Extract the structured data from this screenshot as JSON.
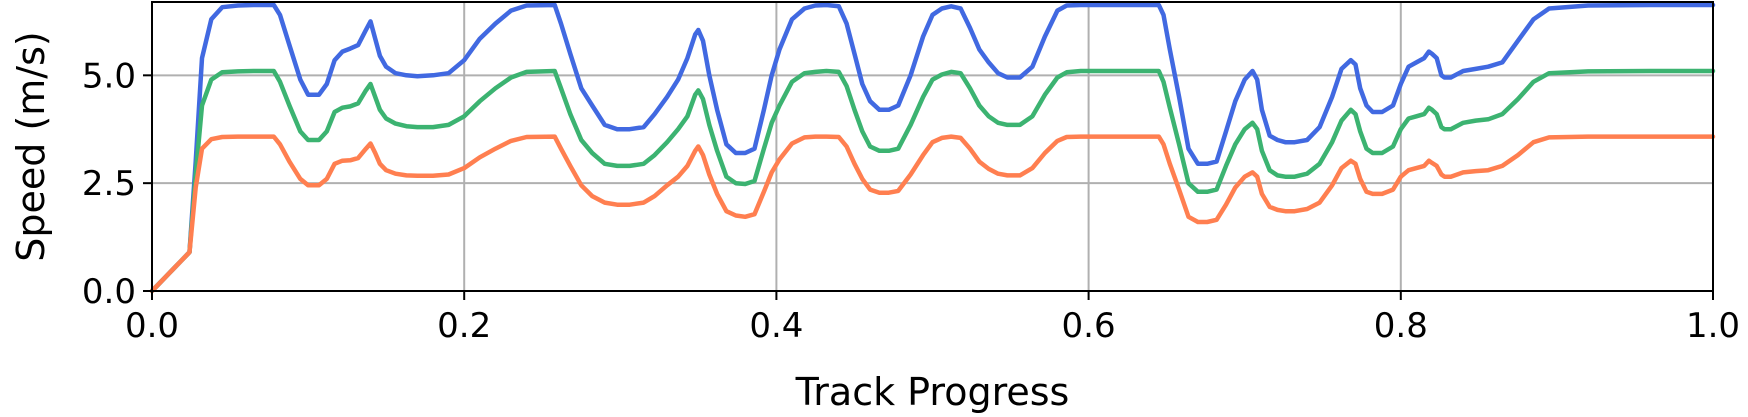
{
  "chart_data": {
    "type": "line",
    "title": "",
    "xlabel": "Track Progress",
    "ylabel": "Speed (m/s)",
    "xlim": [
      0.0,
      1.0
    ],
    "ylim": [
      0.0,
      6.7
    ],
    "xticks": [
      0.0,
      0.2,
      0.4,
      0.6,
      0.8,
      1.0
    ],
    "xtick_labels": [
      "0.0",
      "0.2",
      "0.4",
      "0.6",
      "0.8",
      "1.0"
    ],
    "yticks": [
      0.0,
      2.5,
      5.0
    ],
    "ytick_labels": [
      "0.0",
      "2.5",
      "5.0"
    ],
    "grid": true,
    "legend": "none",
    "series": [
      {
        "color": "#4169e1",
        "x": [
          0.0,
          0.024,
          0.028,
          0.032,
          0.038,
          0.045,
          0.055,
          0.065,
          0.078,
          0.082,
          0.088,
          0.095,
          0.1,
          0.107,
          0.112,
          0.117,
          0.122,
          0.127,
          0.132,
          0.137,
          0.14,
          0.143,
          0.146,
          0.15,
          0.156,
          0.163,
          0.17,
          0.18,
          0.19,
          0.2,
          0.21,
          0.22,
          0.23,
          0.24,
          0.258,
          0.262,
          0.268,
          0.275,
          0.282,
          0.29,
          0.298,
          0.306,
          0.315,
          0.322,
          0.33,
          0.337,
          0.343,
          0.348,
          0.35,
          0.353,
          0.357,
          0.362,
          0.368,
          0.374,
          0.38,
          0.386,
          0.392,
          0.397,
          0.402,
          0.41,
          0.418,
          0.425,
          0.432,
          0.44,
          0.445,
          0.45,
          0.455,
          0.46,
          0.466,
          0.472,
          0.478,
          0.486,
          0.494,
          0.5,
          0.506,
          0.512,
          0.518,
          0.524,
          0.53,
          0.536,
          0.542,
          0.548,
          0.556,
          0.564,
          0.572,
          0.58,
          0.586,
          0.595,
          0.62,
          0.645,
          0.648,
          0.652,
          0.658,
          0.664,
          0.67,
          0.676,
          0.682,
          0.688,
          0.694,
          0.7,
          0.705,
          0.708,
          0.711,
          0.716,
          0.721,
          0.726,
          0.732,
          0.74,
          0.748,
          0.756,
          0.762,
          0.768,
          0.771,
          0.774,
          0.778,
          0.782,
          0.788,
          0.795,
          0.8,
          0.805,
          0.81,
          0.815,
          0.818,
          0.82,
          0.823,
          0.826,
          0.828,
          0.832,
          0.84,
          0.848,
          0.856,
          0.865,
          0.875,
          0.885,
          0.895,
          0.92,
          0.96,
          1.0
        ],
        "y": [
          0.0,
          0.9,
          3.0,
          5.4,
          6.3,
          6.58,
          6.62,
          6.63,
          6.63,
          6.4,
          5.7,
          4.9,
          4.55,
          4.55,
          4.8,
          5.35,
          5.55,
          5.62,
          5.7,
          6.05,
          6.25,
          5.85,
          5.45,
          5.2,
          5.05,
          5.0,
          4.98,
          5.0,
          5.05,
          5.35,
          5.85,
          6.2,
          6.5,
          6.62,
          6.63,
          6.2,
          5.5,
          4.7,
          4.3,
          3.85,
          3.75,
          3.75,
          3.8,
          4.1,
          4.5,
          4.9,
          5.4,
          5.95,
          6.05,
          5.8,
          5.0,
          4.2,
          3.4,
          3.2,
          3.2,
          3.3,
          4.2,
          5.0,
          5.6,
          6.3,
          6.55,
          6.62,
          6.63,
          6.6,
          6.2,
          5.5,
          4.8,
          4.4,
          4.2,
          4.2,
          4.3,
          5.0,
          5.9,
          6.4,
          6.55,
          6.6,
          6.55,
          6.1,
          5.6,
          5.3,
          5.05,
          4.95,
          4.95,
          5.2,
          5.9,
          6.5,
          6.62,
          6.63,
          6.63,
          6.63,
          6.4,
          5.6,
          4.5,
          3.3,
          2.95,
          2.95,
          3.0,
          3.7,
          4.4,
          4.9,
          5.1,
          4.9,
          4.2,
          3.6,
          3.5,
          3.45,
          3.45,
          3.5,
          3.8,
          4.5,
          5.15,
          5.35,
          5.25,
          4.7,
          4.3,
          4.15,
          4.15,
          4.3,
          4.8,
          5.2,
          5.3,
          5.4,
          5.55,
          5.5,
          5.4,
          5.0,
          4.95,
          4.95,
          5.1,
          5.15,
          5.2,
          5.3,
          5.8,
          6.3,
          6.55,
          6.62,
          6.63,
          6.63
        ]
      },
      {
        "color": "#3cb371",
        "x": [
          0.0,
          0.024,
          0.028,
          0.032,
          0.038,
          0.045,
          0.055,
          0.065,
          0.078,
          0.082,
          0.088,
          0.095,
          0.1,
          0.107,
          0.112,
          0.117,
          0.122,
          0.127,
          0.132,
          0.137,
          0.14,
          0.143,
          0.146,
          0.15,
          0.156,
          0.163,
          0.17,
          0.18,
          0.19,
          0.2,
          0.21,
          0.22,
          0.23,
          0.24,
          0.258,
          0.262,
          0.268,
          0.275,
          0.282,
          0.29,
          0.298,
          0.306,
          0.315,
          0.322,
          0.33,
          0.337,
          0.343,
          0.348,
          0.35,
          0.353,
          0.357,
          0.362,
          0.368,
          0.374,
          0.38,
          0.386,
          0.392,
          0.397,
          0.402,
          0.41,
          0.418,
          0.425,
          0.432,
          0.44,
          0.445,
          0.45,
          0.455,
          0.46,
          0.466,
          0.472,
          0.478,
          0.486,
          0.494,
          0.5,
          0.506,
          0.512,
          0.518,
          0.524,
          0.53,
          0.536,
          0.542,
          0.548,
          0.556,
          0.564,
          0.572,
          0.58,
          0.586,
          0.595,
          0.62,
          0.645,
          0.648,
          0.652,
          0.658,
          0.664,
          0.67,
          0.676,
          0.682,
          0.688,
          0.694,
          0.7,
          0.705,
          0.708,
          0.711,
          0.716,
          0.721,
          0.726,
          0.732,
          0.74,
          0.748,
          0.756,
          0.762,
          0.768,
          0.771,
          0.774,
          0.778,
          0.782,
          0.788,
          0.795,
          0.8,
          0.805,
          0.81,
          0.815,
          0.818,
          0.82,
          0.823,
          0.826,
          0.828,
          0.832,
          0.84,
          0.848,
          0.856,
          0.865,
          0.875,
          0.885,
          0.895,
          0.92,
          0.96,
          1.0
        ],
        "y": [
          0.0,
          0.9,
          2.7,
          4.3,
          4.9,
          5.07,
          5.09,
          5.1,
          5.1,
          4.85,
          4.3,
          3.7,
          3.5,
          3.5,
          3.7,
          4.15,
          4.25,
          4.28,
          4.35,
          4.65,
          4.8,
          4.5,
          4.2,
          4.0,
          3.88,
          3.82,
          3.8,
          3.8,
          3.85,
          4.05,
          4.4,
          4.7,
          4.95,
          5.08,
          5.1,
          4.7,
          4.1,
          3.5,
          3.2,
          2.95,
          2.9,
          2.9,
          2.95,
          3.15,
          3.45,
          3.75,
          4.05,
          4.55,
          4.65,
          4.45,
          3.85,
          3.25,
          2.65,
          2.5,
          2.48,
          2.55,
          3.3,
          3.9,
          4.3,
          4.85,
          5.05,
          5.08,
          5.1,
          5.08,
          4.75,
          4.2,
          3.7,
          3.35,
          3.25,
          3.25,
          3.3,
          3.85,
          4.5,
          4.9,
          5.02,
          5.08,
          5.05,
          4.7,
          4.3,
          4.05,
          3.9,
          3.85,
          3.85,
          4.05,
          4.55,
          4.95,
          5.07,
          5.1,
          5.1,
          5.1,
          4.85,
          4.25,
          3.4,
          2.5,
          2.3,
          2.3,
          2.35,
          2.9,
          3.4,
          3.75,
          3.9,
          3.75,
          3.25,
          2.8,
          2.68,
          2.65,
          2.65,
          2.72,
          2.95,
          3.45,
          3.95,
          4.2,
          4.1,
          3.7,
          3.3,
          3.2,
          3.2,
          3.35,
          3.75,
          4.0,
          4.05,
          4.1,
          4.25,
          4.2,
          4.1,
          3.8,
          3.75,
          3.75,
          3.9,
          3.95,
          3.98,
          4.1,
          4.45,
          4.85,
          5.05,
          5.09,
          5.1,
          5.1
        ]
      },
      {
        "color": "#ff7f50",
        "x": [
          0.0,
          0.024,
          0.028,
          0.032,
          0.038,
          0.045,
          0.055,
          0.065,
          0.078,
          0.082,
          0.088,
          0.095,
          0.1,
          0.107,
          0.112,
          0.117,
          0.122,
          0.127,
          0.132,
          0.137,
          0.14,
          0.143,
          0.146,
          0.15,
          0.156,
          0.163,
          0.17,
          0.18,
          0.19,
          0.2,
          0.21,
          0.22,
          0.23,
          0.24,
          0.258,
          0.262,
          0.268,
          0.275,
          0.282,
          0.29,
          0.298,
          0.306,
          0.315,
          0.322,
          0.33,
          0.337,
          0.343,
          0.348,
          0.35,
          0.353,
          0.357,
          0.362,
          0.368,
          0.374,
          0.38,
          0.386,
          0.392,
          0.397,
          0.402,
          0.41,
          0.418,
          0.425,
          0.432,
          0.44,
          0.445,
          0.45,
          0.455,
          0.46,
          0.466,
          0.472,
          0.478,
          0.486,
          0.494,
          0.5,
          0.506,
          0.512,
          0.518,
          0.524,
          0.53,
          0.536,
          0.542,
          0.548,
          0.556,
          0.564,
          0.572,
          0.58,
          0.586,
          0.595,
          0.62,
          0.645,
          0.648,
          0.652,
          0.658,
          0.664,
          0.67,
          0.676,
          0.682,
          0.688,
          0.694,
          0.7,
          0.705,
          0.708,
          0.711,
          0.716,
          0.721,
          0.726,
          0.732,
          0.74,
          0.748,
          0.756,
          0.762,
          0.768,
          0.771,
          0.774,
          0.778,
          0.782,
          0.788,
          0.795,
          0.8,
          0.805,
          0.81,
          0.815,
          0.818,
          0.82,
          0.823,
          0.826,
          0.828,
          0.832,
          0.84,
          0.848,
          0.856,
          0.865,
          0.875,
          0.885,
          0.895,
          0.92,
          0.96,
          1.0
        ],
        "y": [
          0.0,
          0.9,
          2.4,
          3.3,
          3.52,
          3.57,
          3.58,
          3.58,
          3.58,
          3.4,
          3.0,
          2.6,
          2.45,
          2.45,
          2.6,
          2.95,
          3.02,
          3.03,
          3.08,
          3.3,
          3.42,
          3.2,
          2.95,
          2.8,
          2.72,
          2.68,
          2.67,
          2.67,
          2.7,
          2.85,
          3.1,
          3.3,
          3.48,
          3.57,
          3.58,
          3.3,
          2.9,
          2.45,
          2.2,
          2.05,
          2.0,
          2.0,
          2.05,
          2.2,
          2.45,
          2.65,
          2.9,
          3.25,
          3.35,
          3.15,
          2.7,
          2.25,
          1.85,
          1.75,
          1.72,
          1.78,
          2.3,
          2.75,
          3.05,
          3.42,
          3.56,
          3.58,
          3.58,
          3.57,
          3.35,
          2.95,
          2.6,
          2.35,
          2.28,
          2.28,
          2.32,
          2.7,
          3.15,
          3.45,
          3.55,
          3.58,
          3.55,
          3.3,
          3.0,
          2.83,
          2.72,
          2.68,
          2.68,
          2.85,
          3.2,
          3.48,
          3.57,
          3.58,
          3.58,
          3.58,
          3.4,
          2.95,
          2.35,
          1.72,
          1.6,
          1.6,
          1.65,
          2.0,
          2.4,
          2.65,
          2.75,
          2.65,
          2.25,
          1.95,
          1.88,
          1.85,
          1.85,
          1.9,
          2.05,
          2.45,
          2.85,
          3.02,
          2.95,
          2.6,
          2.3,
          2.25,
          2.25,
          2.35,
          2.65,
          2.8,
          2.85,
          2.9,
          3.02,
          2.97,
          2.9,
          2.7,
          2.65,
          2.65,
          2.75,
          2.78,
          2.8,
          2.9,
          3.15,
          3.45,
          3.56,
          3.58,
          3.58,
          3.58
        ]
      }
    ]
  }
}
